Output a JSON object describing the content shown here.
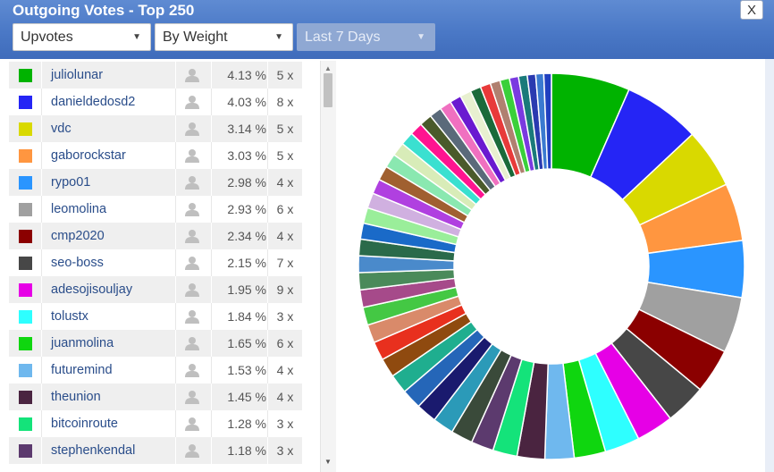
{
  "dialog": {
    "title": "Outgoing Votes - Top 250",
    "close_label": "X"
  },
  "filters": {
    "vote_type": "Upvotes",
    "sort": "By Weight",
    "period": "Last 7 Days"
  },
  "list": {
    "rows": [
      {
        "name": "juliolunar",
        "percent": "4.13 %",
        "count": "5 x",
        "color": "#00b300"
      },
      {
        "name": "danieldedosd2",
        "percent": "4.03 %",
        "count": "8 x",
        "color": "#2525f5"
      },
      {
        "name": "vdc",
        "percent": "3.14 %",
        "count": "5 x",
        "color": "#d9d900"
      },
      {
        "name": "gaborockstar",
        "percent": "3.03 %",
        "count": "5 x",
        "color": "#ff9640"
      },
      {
        "name": "rypo01",
        "percent": "2.98 %",
        "count": "4 x",
        "color": "#2a95ff"
      },
      {
        "name": "leomolina",
        "percent": "2.93 %",
        "count": "6 x",
        "color": "#a0a0a0"
      },
      {
        "name": "cmp2020",
        "percent": "2.34 %",
        "count": "4 x",
        "color": "#8b0000"
      },
      {
        "name": "seo-boss",
        "percent": "2.15 %",
        "count": "7 x",
        "color": "#474747"
      },
      {
        "name": "adesojisouljay",
        "percent": "1.95 %",
        "count": "9 x",
        "color": "#e600e6"
      },
      {
        "name": "tolustx",
        "percent": "1.84 %",
        "count": "3 x",
        "color": "#2effff"
      },
      {
        "name": "juanmolina",
        "percent": "1.65 %",
        "count": "6 x",
        "color": "#0fd60f"
      },
      {
        "name": "futuremind",
        "percent": "1.53 %",
        "count": "4 x",
        "color": "#6fb8ee"
      },
      {
        "name": "theunion",
        "percent": "1.45 %",
        "count": "4 x",
        "color": "#4a2440"
      },
      {
        "name": "bitcoinroute",
        "percent": "1.28 %",
        "count": "3 x",
        "color": "#14e37a"
      },
      {
        "name": "stephenkendal",
        "percent": "1.18 %",
        "count": "3 x",
        "color": "#5c3a6e"
      }
    ]
  },
  "chart_data": {
    "type": "pie",
    "labels": [
      "juliolunar",
      "danieldedosd2",
      "vdc",
      "gaborockstar",
      "rypo01",
      "leomolina",
      "cmp2020",
      "seo-boss",
      "adesojisouljay",
      "tolustx",
      "juanmolina",
      "futuremind",
      "theunion",
      "bitcoinroute",
      "stephenkendal"
    ],
    "values": [
      4.13,
      4.03,
      3.14,
      3.03,
      2.98,
      2.93,
      2.34,
      2.15,
      1.95,
      1.84,
      1.65,
      1.53,
      1.45,
      1.28,
      1.18
    ],
    "colors": [
      "#00b300",
      "#2525f5",
      "#d9d900",
      "#ff9640",
      "#2a95ff",
      "#a0a0a0",
      "#8b0000",
      "#474747",
      "#e600e6",
      "#2effff",
      "#0fd60f",
      "#6fb8ee",
      "#4a2440",
      "#14e37a",
      "#5c3a6e"
    ],
    "other_values": [
      1.15,
      1.1,
      1.08,
      1.05,
      1.02,
      1.0,
      0.98,
      0.96,
      0.94,
      0.92,
      0.9,
      0.88,
      0.86,
      0.84,
      0.82,
      0.8,
      0.78,
      0.76,
      0.74,
      0.72,
      0.7,
      0.68,
      0.66,
      0.64,
      0.62,
      0.6,
      0.58,
      0.56,
      0.54,
      0.52,
      0.5,
      0.48,
      0.46,
      0.44,
      0.42,
      0.4
    ],
    "other_colors": [
      "#3a4a3a",
      "#2b9ab8",
      "#1a1a6e",
      "#2566b8",
      "#1fae8f",
      "#8f4a0f",
      "#e8301e",
      "#d98a6a",
      "#44c844",
      "#a64a8a",
      "#4a8a5a",
      "#4a8acb",
      "#2a6a4a",
      "#1a6ac8",
      "#9aee9a",
      "#d0b0e0",
      "#b040e0",
      "#a06030",
      "#8ae8b0",
      "#d8ecb8",
      "#3ae0d0",
      "#ff1490",
      "#4a5a2a",
      "#5a6a7a",
      "#f070c0",
      "#6a1ad0",
      "#e8f0d0",
      "#1a6a3a",
      "#e83a3a",
      "#b08070",
      "#3ad03a",
      "#7a3ae0",
      "#1a7a7a",
      "#2a3ab0",
      "#3a7ad0",
      "#2040c0"
    ],
    "donut": true
  }
}
